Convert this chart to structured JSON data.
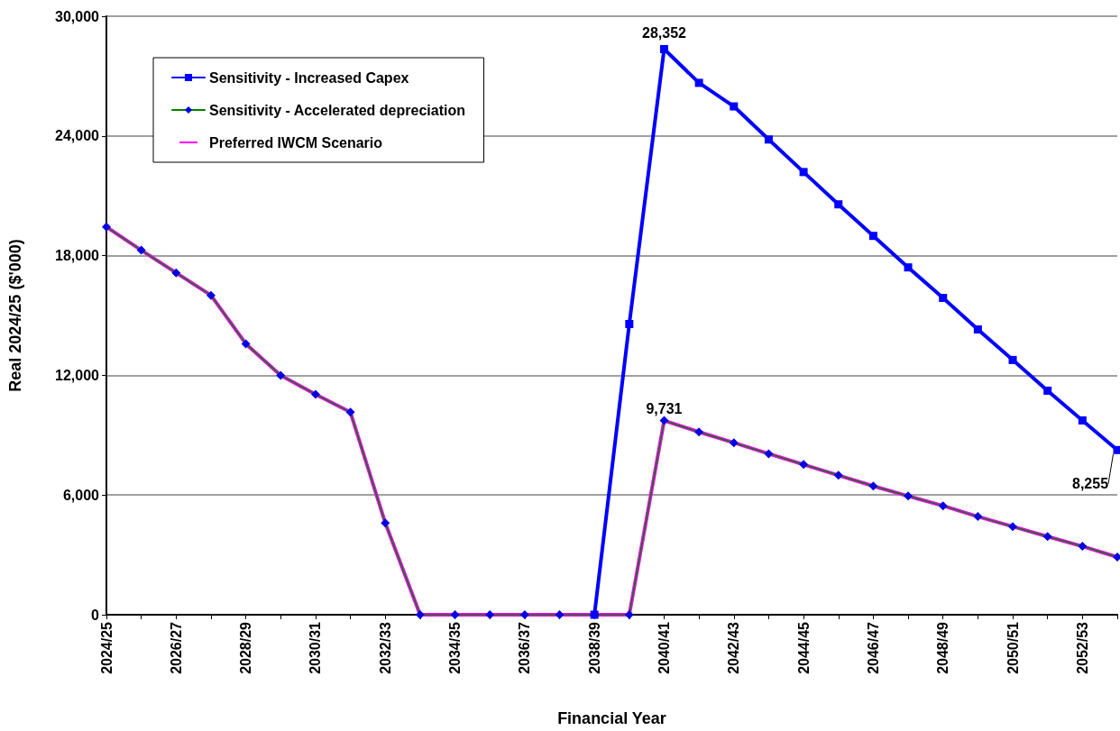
{
  "chart_data": {
    "type": "line",
    "xlabel": "Financial Year",
    "ylabel": "Real 2024/25 ($'000)",
    "categories": [
      "2024/25",
      null,
      "2026/27",
      null,
      "2028/29",
      null,
      "2030/31",
      null,
      "2032/33",
      null,
      "2034/35",
      null,
      "2036/37",
      null,
      "2038/39",
      null,
      "2040/41",
      null,
      "2042/43",
      null,
      "2044/45",
      null,
      "2046/47",
      null,
      "2048/49",
      null,
      "2050/51",
      null,
      "2052/53",
      null
    ],
    "series": [
      {
        "name": "Sensitivity - Increased Capex",
        "color": "#0000ff",
        "marker": "square",
        "values": [
          null,
          null,
          null,
          null,
          null,
          null,
          null,
          null,
          null,
          null,
          null,
          null,
          null,
          null,
          0,
          14570,
          28352,
          26660,
          25480,
          23820,
          22190,
          20570,
          18990,
          17410,
          15880,
          14300,
          12770,
          11230,
          9740,
          8255
        ],
        "value_labels": [
          null,
          null,
          null,
          null,
          null,
          null,
          null,
          null,
          null,
          null,
          null,
          null,
          null,
          null,
          null,
          null,
          "28,352",
          null,
          null,
          null,
          null,
          null,
          null,
          null,
          null,
          null,
          null,
          null,
          null,
          "8,255"
        ]
      },
      {
        "name": "Sensitivity - Accelerated depreciation",
        "color": "#008000",
        "marker": "diamond",
        "values": [
          19440,
          18270,
          17140,
          16010,
          13580,
          12000,
          11050,
          10150,
          4600,
          0,
          0,
          0,
          0,
          0,
          0,
          0,
          9731,
          9160,
          8620,
          8070,
          7530,
          6990,
          6450,
          5950,
          5460,
          4920,
          4420,
          3920,
          3430,
          2890
        ]
      },
      {
        "name": "Preferred IWCM Scenario",
        "color": "#ff00ff",
        "marker": "none",
        "values": [
          19440,
          18270,
          17140,
          16010,
          13580,
          12000,
          11050,
          10150,
          4600,
          0,
          0,
          0,
          0,
          0,
          0,
          0,
          9731,
          9160,
          8620,
          8070,
          7530,
          6990,
          6450,
          5950,
          5460,
          4920,
          4420,
          3920,
          3430,
          2890
        ],
        "value_labels": [
          null,
          null,
          null,
          null,
          null,
          null,
          null,
          null,
          null,
          null,
          null,
          null,
          null,
          null,
          null,
          null,
          "9,731",
          null,
          null,
          null,
          null,
          null,
          null,
          null,
          null,
          null,
          null,
          null,
          null,
          null
        ]
      }
    ],
    "ylim": [
      0,
      30000
    ],
    "yticks": [
      {
        "value": 0,
        "label": "0"
      },
      {
        "value": 6000,
        "label": "6,000"
      },
      {
        "value": 12000,
        "label": "12,000"
      },
      {
        "value": 18000,
        "label": "18,000"
      },
      {
        "value": 24000,
        "label": "24,000"
      },
      {
        "value": 30000,
        "label": "30,000"
      }
    ],
    "grid": "y",
    "legend": "top left",
    "line_style": "solid"
  }
}
